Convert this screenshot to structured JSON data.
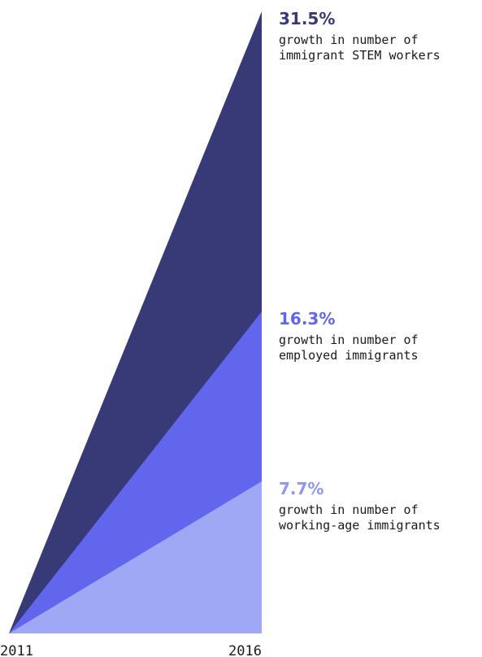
{
  "chart_data": {
    "type": "area",
    "x": [
      "2011",
      "2016"
    ],
    "ylim": [
      0,
      31.5
    ],
    "series": [
      {
        "values": [
          0,
          31.5
        ],
        "value_label": "31.5%",
        "description": [
          "growth in number of",
          "immigrant STEM workers"
        ],
        "color": "#383a78",
        "label_color": "#383a78"
      },
      {
        "values": [
          0,
          16.3
        ],
        "value_label": "16.3%",
        "description": [
          "growth in number of",
          "employed immigrants"
        ],
        "color": "#6166ec",
        "label_color": "#6166ec"
      },
      {
        "values": [
          0,
          7.7
        ],
        "value_label": "7.7%",
        "description": [
          "growth in number of",
          "working-age immigrants"
        ],
        "color": "#9ea8f5",
        "label_color": "#8f98ee"
      }
    ]
  }
}
